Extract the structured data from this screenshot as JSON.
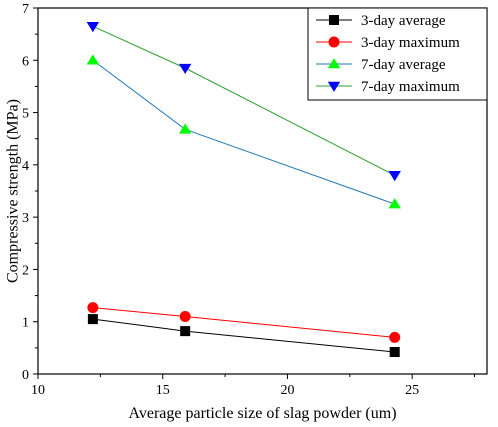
{
  "chart_data": {
    "type": "line",
    "xlabel": "Average particle size of slag powder (um)",
    "ylabel": "Compressive strength (MPa)",
    "xlim": [
      10,
      28
    ],
    "ylim": [
      0,
      7
    ],
    "xticks": [
      10,
      15,
      20,
      25
    ],
    "yticks": [
      0,
      1,
      2,
      3,
      4,
      5,
      6,
      7
    ],
    "grid": false,
    "legend_position": "top-right",
    "series": [
      {
        "name": "3-day average",
        "marker": "square",
        "marker_color": "#000000",
        "line_color": "#000000",
        "x": [
          12.2,
          15.9,
          24.3
        ],
        "y": [
          1.05,
          0.82,
          0.42
        ]
      },
      {
        "name": "3-day maximum",
        "marker": "circle",
        "marker_color": "#ff0000",
        "line_color": "#ff0000",
        "x": [
          12.2,
          15.9,
          24.3
        ],
        "y": [
          1.27,
          1.1,
          0.7
        ]
      },
      {
        "name": "7-day average",
        "marker": "triangle-up",
        "marker_color": "#00ff00",
        "line_color": "#1f77b4",
        "x": [
          12.2,
          15.9,
          24.3
        ],
        "y": [
          6.0,
          4.68,
          3.25
        ]
      },
      {
        "name": "7-day maximum",
        "marker": "triangle-down",
        "marker_color": "#0000ff",
        "line_color": "#2ca02c",
        "x": [
          12.2,
          15.9,
          24.3
        ],
        "y": [
          6.65,
          5.85,
          3.8
        ]
      }
    ]
  }
}
